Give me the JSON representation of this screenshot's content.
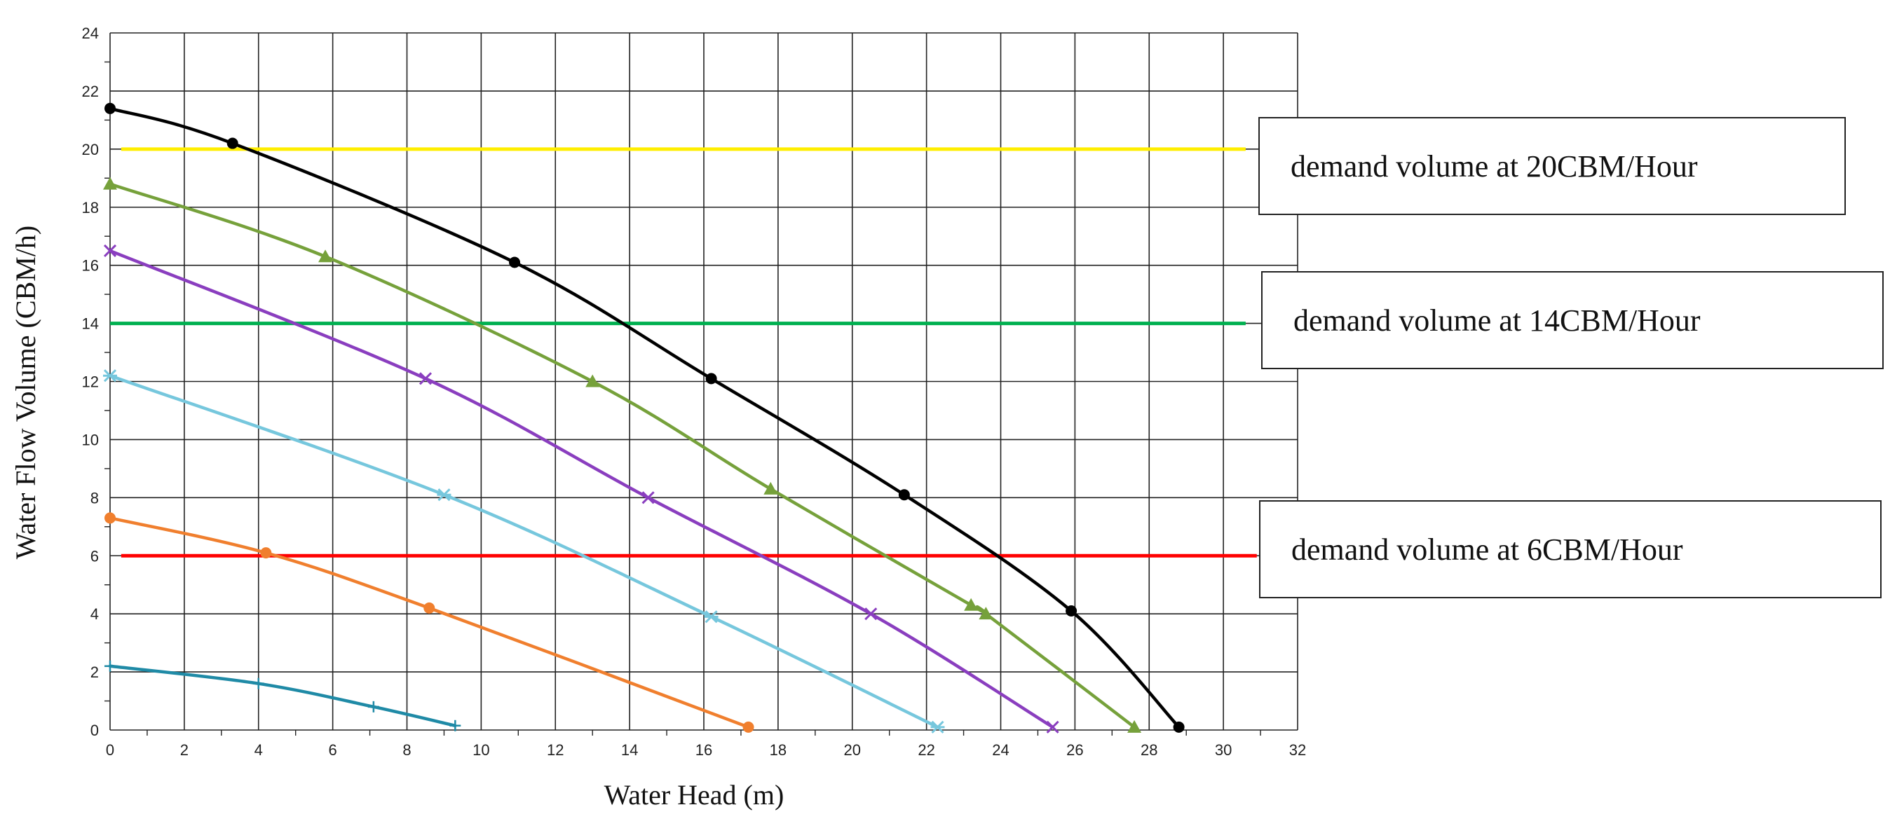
{
  "chart_data": {
    "type": "line",
    "title": "",
    "xlabel": "Water Head (m)",
    "ylabel": "Water Flow Volume (CBM/h)",
    "xlim": [
      0,
      32
    ],
    "ylim": [
      0,
      24
    ],
    "x_ticks": [
      "0",
      "2",
      "4",
      "6",
      "8",
      "10",
      "12",
      "14",
      "16",
      "18",
      "20",
      "22",
      "24",
      "26",
      "28",
      "30",
      "32"
    ],
    "y_ticks": [
      "0",
      "2",
      "4",
      "6",
      "8",
      "10",
      "12",
      "14",
      "16",
      "18",
      "20",
      "22",
      "24"
    ],
    "grid": true,
    "series": [
      {
        "color": "#000000",
        "marker": "circle",
        "points": [
          [
            0,
            21.4
          ],
          [
            3.3,
            20.2
          ],
          [
            10.9,
            16.1
          ],
          [
            16.2,
            12.1
          ],
          [
            21.4,
            8.1
          ],
          [
            25.9,
            4.1
          ],
          [
            28.8,
            0.1
          ]
        ]
      },
      {
        "color": "#76a13b",
        "marker": "triangle",
        "points": [
          [
            0,
            18.8
          ],
          [
            5.8,
            16.3
          ],
          [
            13.0,
            12.0
          ],
          [
            17.8,
            8.3
          ],
          [
            23.2,
            4.3
          ],
          [
            23.6,
            4.0
          ],
          [
            27.6,
            0.1
          ]
        ]
      },
      {
        "color": "#8a3ebf",
        "marker": "x",
        "points": [
          [
            0,
            16.5
          ],
          [
            8.5,
            12.1
          ],
          [
            14.5,
            8.0
          ],
          [
            20.5,
            4.0
          ],
          [
            25.4,
            0.1
          ]
        ]
      },
      {
        "color": "#76c7dd",
        "marker": "star",
        "points": [
          [
            0,
            12.2
          ],
          [
            9.0,
            8.1
          ],
          [
            16.2,
            3.9
          ],
          [
            22.3,
            0.1
          ]
        ]
      },
      {
        "color": "#f07f2e",
        "marker": "circle",
        "points": [
          [
            0,
            7.3
          ],
          [
            4.2,
            6.1
          ],
          [
            8.6,
            4.2
          ],
          [
            17.2,
            0.1
          ]
        ]
      },
      {
        "color": "#1f8aa6",
        "marker": "plus",
        "points": [
          [
            0,
            2.2
          ],
          [
            4,
            1.6
          ],
          [
            7.1,
            0.8
          ],
          [
            9.3,
            0.15
          ]
        ]
      }
    ],
    "demand_lines": [
      {
        "label": "demand volume at 20CBM/Hour",
        "value": 20,
        "color": "#ffee00"
      },
      {
        "label": "demand volume at 14CBM/Hour",
        "value": 14,
        "color": "#00b050"
      },
      {
        "label": "demand volume at 6CBM/Hour",
        "value": 6,
        "color": "#ff0000"
      }
    ]
  }
}
